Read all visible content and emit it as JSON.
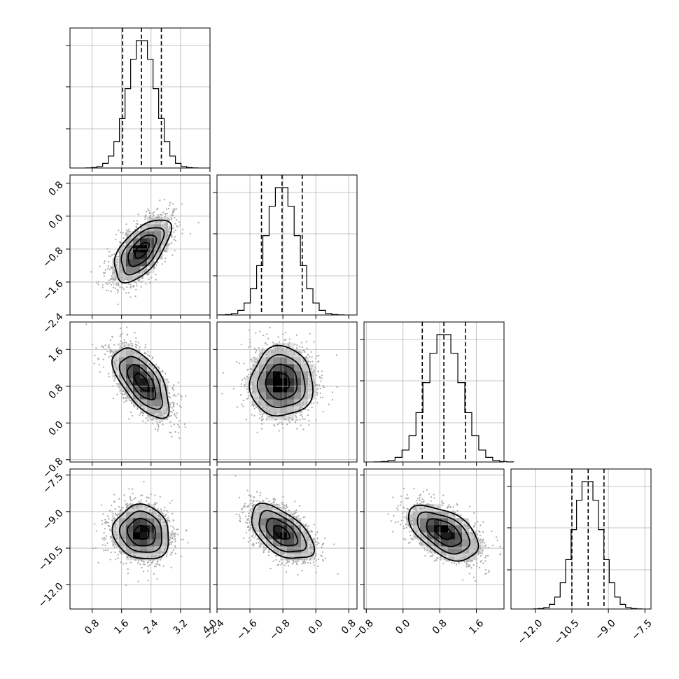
{
  "chart_data": {
    "type": "corner",
    "parameters": [
      {
        "mean": 2.15,
        "sd": 0.38,
        "xlim": [
          0.2,
          4.0
        ],
        "ticks": [
          0.8,
          1.6,
          2.4,
          3.2,
          4.0
        ],
        "tick_labels": [
          "0.8",
          "1.6",
          "2.4",
          "3.2",
          "4.0"
        ],
        "quantiles": [
          1.63,
          2.14,
          2.68
        ]
      },
      {
        "mean": -0.83,
        "sd": 0.38,
        "xlim": [
          -2.4,
          1.0
        ],
        "ticks": [
          -2.4,
          -1.6,
          -0.8,
          0.0,
          0.8
        ],
        "tick_labels": [
          "−2.4",
          "−1.6",
          "−0.8",
          "0.0",
          "0.8"
        ],
        "quantiles": [
          -1.32,
          -0.82,
          -0.33
        ]
      },
      {
        "mean": 0.89,
        "sd": 0.38,
        "xlim": [
          -0.85,
          2.2
        ],
        "ticks": [
          -0.8,
          0.0,
          0.8,
          1.6
        ],
        "tick_labels": [
          "−0.8",
          "0.0",
          "0.8",
          "1.6"
        ],
        "quantiles": [
          0.42,
          0.89,
          1.36
        ]
      },
      {
        "mean": -9.86,
        "sd": 0.56,
        "xlim": [
          -13.0,
          -7.25
        ],
        "ticks": [
          -12.0,
          -10.5,
          -9.0,
          -7.5
        ],
        "tick_labels": [
          "−12.0",
          "−10.5",
          "−9.0",
          "−7.5"
        ],
        "quantiles": [
          -10.5,
          -9.83,
          -9.18
        ]
      }
    ],
    "correlations": [
      [
        1.0,
        0.6,
        -0.62,
        -0.1
      ],
      [
        0.6,
        1.0,
        0.0,
        -0.55
      ],
      [
        -0.62,
        0.0,
        1.0,
        -0.52
      ],
      [
        -0.1,
        -0.55,
        -0.52,
        1.0
      ]
    ],
    "hist_bins": 20,
    "contour_levels_sigma": [
      0.5,
      1.0,
      1.5,
      2.0
    ],
    "grid": true
  }
}
